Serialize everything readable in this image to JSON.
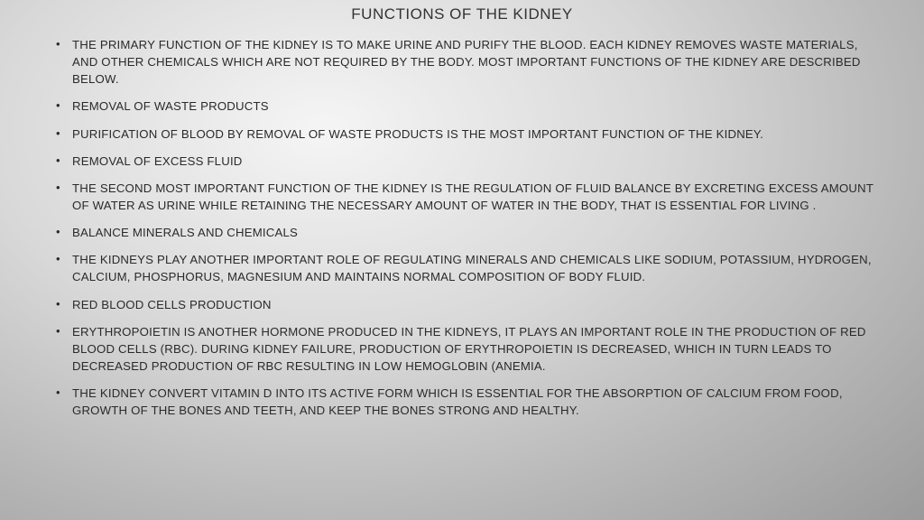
{
  "slide": {
    "title": "FUNCTIONS OF THE KIDNEY",
    "bullets": [
      "THE PRIMARY FUNCTION OF THE KIDNEY IS TO MAKE URINE AND PURIFY THE BLOOD. EACH KIDNEY REMOVES WASTE MATERIALS, AND OTHER CHEMICALS WHICH ARE NOT REQUIRED BY THE BODY. MOST IMPORTANT FUNCTIONS OF THE KIDNEY ARE DESCRIBED BELOW.",
      "REMOVAL OF WASTE PRODUCTS",
      "PURIFICATION OF BLOOD BY REMOVAL OF WASTE PRODUCTS IS THE MOST IMPORTANT FUNCTION OF THE KIDNEY.",
      "REMOVAL OF EXCESS FLUID",
      "THE SECOND MOST IMPORTANT FUNCTION OF THE KIDNEY IS THE REGULATION OF FLUID BALANCE BY EXCRETING EXCESS AMOUNT OF WATER AS URINE WHILE RETAINING THE NECESSARY AMOUNT OF WATER IN THE BODY, THAT IS ESSENTIAL FOR LIVING .",
      "BALANCE MINERALS AND CHEMICALS",
      "THE KIDNEYS PLAY ANOTHER IMPORTANT ROLE OF REGULATING MINERALS AND CHEMICALS LIKE SODIUM, POTASSIUM, HYDROGEN, CALCIUM, PHOSPHORUS, MAGNESIUM AND MAINTAINS NORMAL COMPOSITION OF BODY FLUID.",
      "RED BLOOD CELLS PRODUCTION",
      "ERYTHROPOIETIN IS ANOTHER HORMONE PRODUCED IN THE KIDNEYS, IT PLAYS AN IMPORTANT ROLE IN THE PRODUCTION OF RED BLOOD CELLS (RBC). DURING KIDNEY FAILURE, PRODUCTION OF ERYTHROPOIETIN IS DECREASED, WHICH IN TURN LEADS TO DECREASED PRODUCTION OF RBC RESULTING IN LOW HEMOGLOBIN (ANEMIA.",
      "THE KIDNEY CONVERT VITAMIN D INTO ITS ACTIVE FORM WHICH IS ESSENTIAL FOR THE ABSORPTION OF CALCIUM FROM FOOD, GROWTH OF THE BONES AND TEETH, AND KEEP THE BONES STRONG AND HEALTHY."
    ]
  },
  "style": {
    "background_gradient": [
      "#f5f5f5",
      "#d8d8d8",
      "#b8b8b8",
      "#9a9a9a"
    ],
    "title_fontsize": 17,
    "title_color": "#333333",
    "bullet_fontsize": 13.2,
    "bullet_color": "#2a2a2a",
    "line_height": 1.45,
    "font_family": "Arial"
  }
}
